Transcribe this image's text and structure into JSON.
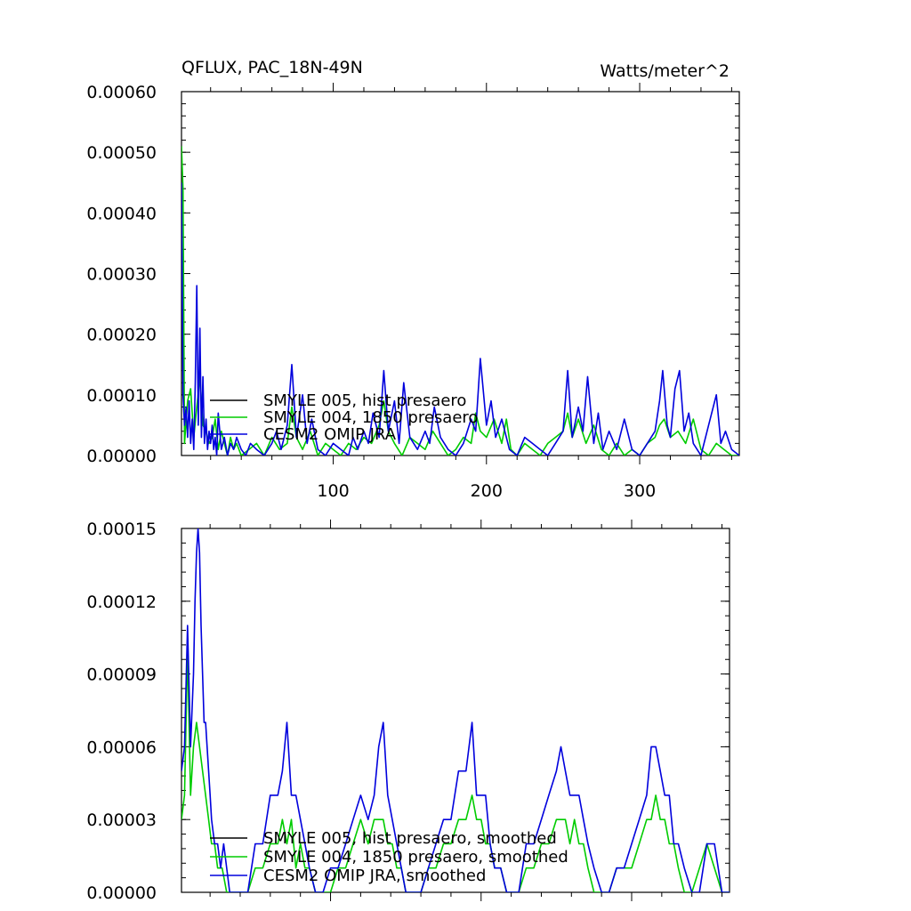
{
  "colors": {
    "black": "#000000",
    "green": "#00cc00",
    "blue": "#0000dd"
  },
  "chart_data": [
    {
      "type": "line",
      "title": "QFLUX, PAC_18N-49N",
      "units_label": "Watts/meter^2",
      "xlim": [
        1,
        365
      ],
      "ylim": [
        0,
        0.0006
      ],
      "yticks": [
        "0.00000",
        "0.00010",
        "0.00020",
        "0.00030",
        "0.00040",
        "0.00050",
        "0.00060"
      ],
      "ytick_values": [
        0,
        0.0001,
        0.0002,
        0.0003,
        0.0004,
        0.0005,
        0.0006
      ],
      "xticks": [
        "100",
        "200",
        "300"
      ],
      "xtick_values": [
        100,
        200,
        300
      ],
      "legend": [
        {
          "name": "SMYLE 005, hist presaero",
          "color": "#000000"
        },
        {
          "name": "SMYLE 004, 1850 presaero",
          "color": "#00cc00"
        },
        {
          "name": "CESM2 OMIP JRA",
          "color": "#0000dd"
        }
      ],
      "series": [
        {
          "name": "SMYLE 004, 1850 presaero",
          "color": "#00cc00",
          "x": [
            1,
            2,
            3,
            5,
            7,
            9,
            11,
            13,
            15,
            17,
            19,
            21,
            23,
            25,
            27,
            29,
            31,
            33,
            35,
            37,
            40,
            45,
            50,
            55,
            60,
            65,
            70,
            73,
            76,
            80,
            85,
            90,
            95,
            100,
            105,
            110,
            115,
            120,
            125,
            130,
            133,
            136,
            140,
            145,
            150,
            155,
            160,
            165,
            170,
            175,
            180,
            185,
            190,
            193,
            196,
            200,
            205,
            210,
            213,
            216,
            220,
            225,
            230,
            235,
            240,
            245,
            250,
            253,
            256,
            260,
            265,
            270,
            275,
            280,
            285,
            290,
            295,
            300,
            305,
            310,
            313,
            316,
            320,
            325,
            330,
            335,
            340,
            345,
            350,
            355,
            360,
            365
          ],
          "y": [
            0.00051,
            0.00044,
            2e-05,
            9e-05,
            0.00011,
            3e-05,
            8e-05,
            0.00013,
            5e-05,
            4e-05,
            2e-05,
            3e-05,
            6e-05,
            1e-05,
            4e-05,
            2e-05,
            0.0,
            3e-05,
            1e-05,
            2e-05,
            0.0,
            1e-05,
            2e-05,
            0.0,
            3e-05,
            1e-05,
            2e-05,
            8e-05,
            3e-05,
            1e-05,
            4e-05,
            0.0,
            2e-05,
            1e-05,
            0.0,
            2e-05,
            1e-05,
            3e-05,
            2e-05,
            5e-05,
            9e-05,
            4e-05,
            2e-05,
            0.0,
            3e-05,
            2e-05,
            1e-05,
            4e-05,
            2e-05,
            0.0,
            1e-05,
            3e-05,
            2e-05,
            7e-05,
            4e-05,
            3e-05,
            6e-05,
            2e-05,
            6e-05,
            1e-05,
            0.0,
            2e-05,
            1e-05,
            0.0,
            2e-05,
            3e-05,
            4e-05,
            7e-05,
            3e-05,
            6e-05,
            2e-05,
            5e-05,
            1e-05,
            0.0,
            2e-05,
            0.0,
            1e-05,
            0.0,
            2e-05,
            3e-05,
            5e-05,
            6e-05,
            3e-05,
            4e-05,
            2e-05,
            6e-05,
            1e-05,
            0.0,
            2e-05,
            1e-05,
            0.0,
            0.0
          ]
        },
        {
          "name": "CESM2 OMIP JRA",
          "color": "#0000dd",
          "x": [
            1,
            2,
            3,
            4,
            5,
            6,
            7,
            8,
            9,
            10,
            11,
            12,
            13,
            14,
            15,
            16,
            17,
            18,
            19,
            20,
            21,
            22,
            23,
            24,
            25,
            27,
            29,
            31,
            33,
            35,
            37,
            40,
            43,
            46,
            50,
            55,
            60,
            63,
            66,
            70,
            73,
            76,
            80,
            83,
            86,
            90,
            95,
            100,
            105,
            110,
            113,
            116,
            120,
            123,
            126,
            130,
            133,
            136,
            140,
            143,
            146,
            150,
            155,
            160,
            163,
            166,
            170,
            175,
            180,
            185,
            190,
            193,
            196,
            200,
            203,
            206,
            210,
            215,
            220,
            225,
            230,
            235,
            240,
            245,
            250,
            253,
            256,
            260,
            263,
            266,
            270,
            273,
            276,
            280,
            285,
            290,
            295,
            300,
            305,
            310,
            313,
            315,
            318,
            320,
            323,
            326,
            329,
            332,
            335,
            340,
            345,
            350,
            353,
            356,
            360,
            365
          ],
          "y": [
            0.00045,
            0.0001,
            5e-05,
            8e-05,
            3e-05,
            9e-05,
            2e-05,
            6e-05,
            1e-05,
            0.00012,
            0.00028,
            5e-05,
            0.00021,
            3e-05,
            0.00013,
            2e-05,
            6e-05,
            1e-05,
            4e-05,
            2e-05,
            5e-05,
            1e-05,
            3e-05,
            0.0,
            7e-05,
            1e-05,
            3e-05,
            0.0,
            2e-05,
            1e-05,
            3e-05,
            1e-05,
            0.0,
            2e-05,
            1e-05,
            0.0,
            2e-05,
            4e-05,
            1e-05,
            5e-05,
            0.00015,
            3e-05,
            0.0001,
            2e-05,
            6e-05,
            1e-05,
            0.0,
            2e-05,
            1e-05,
            0.0,
            3e-05,
            1e-05,
            4e-05,
            2e-05,
            7e-05,
            3e-05,
            0.00014,
            4e-05,
            9e-05,
            2e-05,
            0.00012,
            3e-05,
            1e-05,
            4e-05,
            2e-05,
            8e-05,
            3e-05,
            1e-05,
            0.0,
            2e-05,
            6e-05,
            4e-05,
            0.00016,
            5e-05,
            9e-05,
            3e-05,
            6e-05,
            1e-05,
            0.0,
            3e-05,
            2e-05,
            1e-05,
            0.0,
            2e-05,
            4e-05,
            0.00014,
            3e-05,
            8e-05,
            4e-05,
            0.00013,
            2e-05,
            7e-05,
            1e-05,
            4e-05,
            1e-05,
            6e-05,
            1e-05,
            0.0,
            2e-05,
            4e-05,
            9e-05,
            0.00014,
            5e-05,
            3e-05,
            0.00011,
            0.00014,
            4e-05,
            7e-05,
            2e-05,
            0.0,
            5e-05,
            0.0001,
            2e-05,
            4e-05,
            1e-05,
            0.0
          ]
        }
      ]
    },
    {
      "type": "line",
      "xlim": [
        1,
        365
      ],
      "ylim": [
        0,
        0.00015
      ],
      "yticks": [
        "0.00000",
        "0.00003",
        "0.00006",
        "0.00009",
        "0.00012",
        "0.00015"
      ],
      "ytick_values": [
        0,
        3e-05,
        6e-05,
        9e-05,
        0.00012,
        0.00015
      ],
      "legend": [
        {
          "name": "SMYLE 005, hist presaero, smoothed",
          "color": "#000000"
        },
        {
          "name": "SMYLE 004, 1850 presaero, smoothed",
          "color": "#00cc00"
        },
        {
          "name": "CESM2 OMIP JRA, smoothed",
          "color": "#0000dd"
        }
      ],
      "series": [
        {
          "name": "SMYLE 004, 1850 presaero, smoothed",
          "color": "#00cc00",
          "x": [
            1,
            3,
            5,
            7,
            9,
            11,
            13,
            15,
            17,
            19,
            21,
            23,
            25,
            28,
            31,
            35,
            40,
            45,
            50,
            55,
            60,
            65,
            68,
            71,
            74,
            77,
            80,
            83,
            86,
            90,
            95,
            100,
            105,
            110,
            115,
            120,
            125,
            129,
            132,
            135,
            138,
            141,
            144,
            147,
            150,
            155,
            160,
            165,
            170,
            175,
            180,
            185,
            190,
            194,
            197,
            200,
            203,
            206,
            209,
            213,
            217,
            220,
            225,
            230,
            235,
            240,
            245,
            250,
            253,
            256,
            259,
            262,
            265,
            268,
            271,
            275,
            280,
            285,
            290,
            295,
            300,
            305,
            310,
            313,
            316,
            319,
            322,
            325,
            328,
            331,
            335,
            340,
            345,
            350,
            355,
            360,
            365
          ],
          "y": [
            3e-05,
            4e-05,
            0.0001,
            4e-05,
            6e-05,
            7e-05,
            6e-05,
            5e-05,
            4e-05,
            3e-05,
            2e-05,
            2e-05,
            1e-05,
            1e-05,
            0.0,
            0.0,
            0.0,
            0.0,
            1e-05,
            1e-05,
            2e-05,
            2e-05,
            3e-05,
            2e-05,
            3e-05,
            1e-05,
            2e-05,
            1e-05,
            1e-05,
            0.0,
            0.0,
            0.0,
            1e-05,
            1e-05,
            2e-05,
            3e-05,
            2e-05,
            3e-05,
            3e-05,
            3e-05,
            2e-05,
            2e-05,
            1e-05,
            1e-05,
            0.0,
            0.0,
            0.0,
            1e-05,
            1e-05,
            2e-05,
            2e-05,
            3e-05,
            3e-05,
            4e-05,
            3e-05,
            3e-05,
            2e-05,
            2e-05,
            1e-05,
            1e-05,
            0.0,
            0.0,
            0.0,
            1e-05,
            1e-05,
            2e-05,
            2e-05,
            3e-05,
            3e-05,
            3e-05,
            2e-05,
            3e-05,
            2e-05,
            2e-05,
            1e-05,
            0.0,
            0.0,
            0.0,
            1e-05,
            1e-05,
            1e-05,
            2e-05,
            3e-05,
            3e-05,
            4e-05,
            3e-05,
            3e-05,
            2e-05,
            2e-05,
            1e-05,
            0.0,
            0.0,
            1e-05,
            2e-05,
            1e-05,
            0.0,
            0.0
          ]
        },
        {
          "name": "CESM2 OMIP JRA, smoothed",
          "color": "#0000dd",
          "x": [
            1,
            3,
            5,
            7,
            9,
            10,
            11,
            12,
            13,
            14,
            15,
            16,
            17,
            18,
            19,
            20,
            21,
            23,
            25,
            27,
            29,
            31,
            33,
            36,
            40,
            45,
            50,
            55,
            60,
            65,
            68,
            71,
            74,
            77,
            80,
            83,
            86,
            90,
            95,
            100,
            105,
            110,
            115,
            120,
            125,
            129,
            132,
            135,
            138,
            141,
            144,
            147,
            150,
            155,
            160,
            165,
            170,
            175,
            180,
            185,
            190,
            194,
            197,
            200,
            203,
            206,
            209,
            213,
            217,
            220,
            225,
            230,
            235,
            240,
            245,
            250,
            253,
            256,
            259,
            262,
            265,
            268,
            271,
            275,
            280,
            285,
            290,
            295,
            300,
            305,
            310,
            313,
            316,
            319,
            322,
            325,
            328,
            331,
            335,
            340,
            345,
            350,
            355,
            360,
            365
          ],
          "y": [
            5e-05,
            6e-05,
            0.00011,
            6e-05,
            9e-05,
            0.00012,
            0.00014,
            0.00015,
            0.00014,
            0.00011,
            9e-05,
            7e-05,
            7e-05,
            6e-05,
            5e-05,
            4e-05,
            3e-05,
            2e-05,
            2e-05,
            1e-05,
            2e-05,
            1e-05,
            0.0,
            0.0,
            0.0,
            0.0,
            2e-05,
            2e-05,
            4e-05,
            4e-05,
            5e-05,
            7e-05,
            4e-05,
            4e-05,
            3e-05,
            2e-05,
            1e-05,
            0.0,
            0.0,
            1e-05,
            1e-05,
            2e-05,
            3e-05,
            4e-05,
            3e-05,
            4e-05,
            6e-05,
            7e-05,
            4e-05,
            3e-05,
            2e-05,
            1e-05,
            0.0,
            0.0,
            0.0,
            1e-05,
            2e-05,
            3e-05,
            3e-05,
            5e-05,
            5e-05,
            7e-05,
            4e-05,
            4e-05,
            4e-05,
            2e-05,
            1e-05,
            1e-05,
            0.0,
            0.0,
            0.0,
            2e-05,
            2e-05,
            3e-05,
            4e-05,
            5e-05,
            6e-05,
            5e-05,
            4e-05,
            4e-05,
            4e-05,
            3e-05,
            2e-05,
            1e-05,
            0.0,
            0.0,
            1e-05,
            1e-05,
            2e-05,
            3e-05,
            4e-05,
            6e-05,
            6e-05,
            5e-05,
            4e-05,
            4e-05,
            2e-05,
            2e-05,
            1e-05,
            0.0,
            0.0,
            2e-05,
            2e-05,
            0.0,
            0.0
          ]
        }
      ]
    }
  ]
}
